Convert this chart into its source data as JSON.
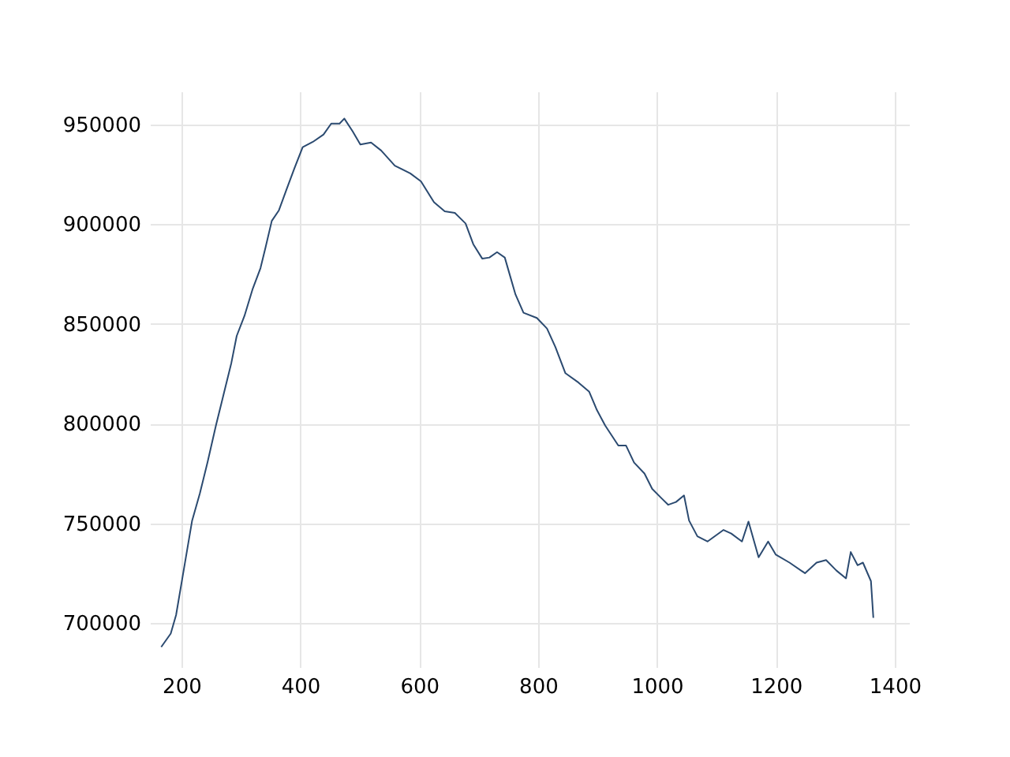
{
  "chart_data": {
    "type": "line",
    "x": [
      166,
      182,
      191,
      204.5,
      218,
      231,
      244,
      258,
      271,
      284,
      293,
      306,
      320,
      333,
      341.6,
      352,
      364,
      377,
      390,
      404,
      421,
      439,
      452,
      466,
      474,
      488,
      501,
      519,
      536,
      559,
      585,
      603,
      625,
      643,
      660,
      678,
      691,
      706,
      718,
      731,
      744,
      753,
      762,
      775.5,
      798,
      815,
      829,
      846,
      868,
      886,
      899,
      913,
      935,
      948,
      961.5,
      979,
      992,
      1008,
      1019,
      1032,
      1045.5,
      1054,
      1068,
      1085,
      1112,
      1125,
      1143,
      1154,
      1171,
      1187,
      1200,
      1223,
      1249,
      1268.5,
      1284.5,
      1302,
      1318,
      1326,
      1337.5,
      1346.5,
      1360,
      1364
    ],
    "series": [
      {
        "color": "#2b4a70",
        "values": [
          688000,
          694700,
          704000,
          727700,
          751400,
          765000,
          780700,
          799000,
          814700,
          830500,
          844000,
          854000,
          867700,
          878000,
          888500,
          901700,
          907000,
          917600,
          928000,
          938700,
          941300,
          945000,
          950500,
          950500,
          953000,
          946600,
          940000,
          941000,
          937000,
          929400,
          925500,
          921500,
          911000,
          906500,
          905700,
          900400,
          890000,
          882800,
          883300,
          886000,
          883300,
          874000,
          864800,
          855600,
          853000,
          847700,
          838500,
          825300,
          820600,
          816000,
          806800,
          799000,
          789000,
          789000,
          780500,
          775000,
          767300,
          762500,
          759300,
          760700,
          764000,
          751400,
          743500,
          740900,
          746700,
          744900,
          740900,
          750900,
          733000,
          740900,
          734300,
          730300,
          725000,
          730300,
          731600,
          726300,
          722400,
          735600,
          729000,
          730300,
          721000,
          702600
        ]
      }
    ],
    "xlim": [
      147,
      1424
    ],
    "ylim": [
      677900,
      966600
    ],
    "xticks": [
      200,
      400,
      600,
      800,
      1000,
      1200,
      1400
    ],
    "yticks": [
      700000,
      750000,
      800000,
      850000,
      900000,
      950000
    ],
    "grid": true,
    "marker": "none",
    "line_style": "solid"
  }
}
